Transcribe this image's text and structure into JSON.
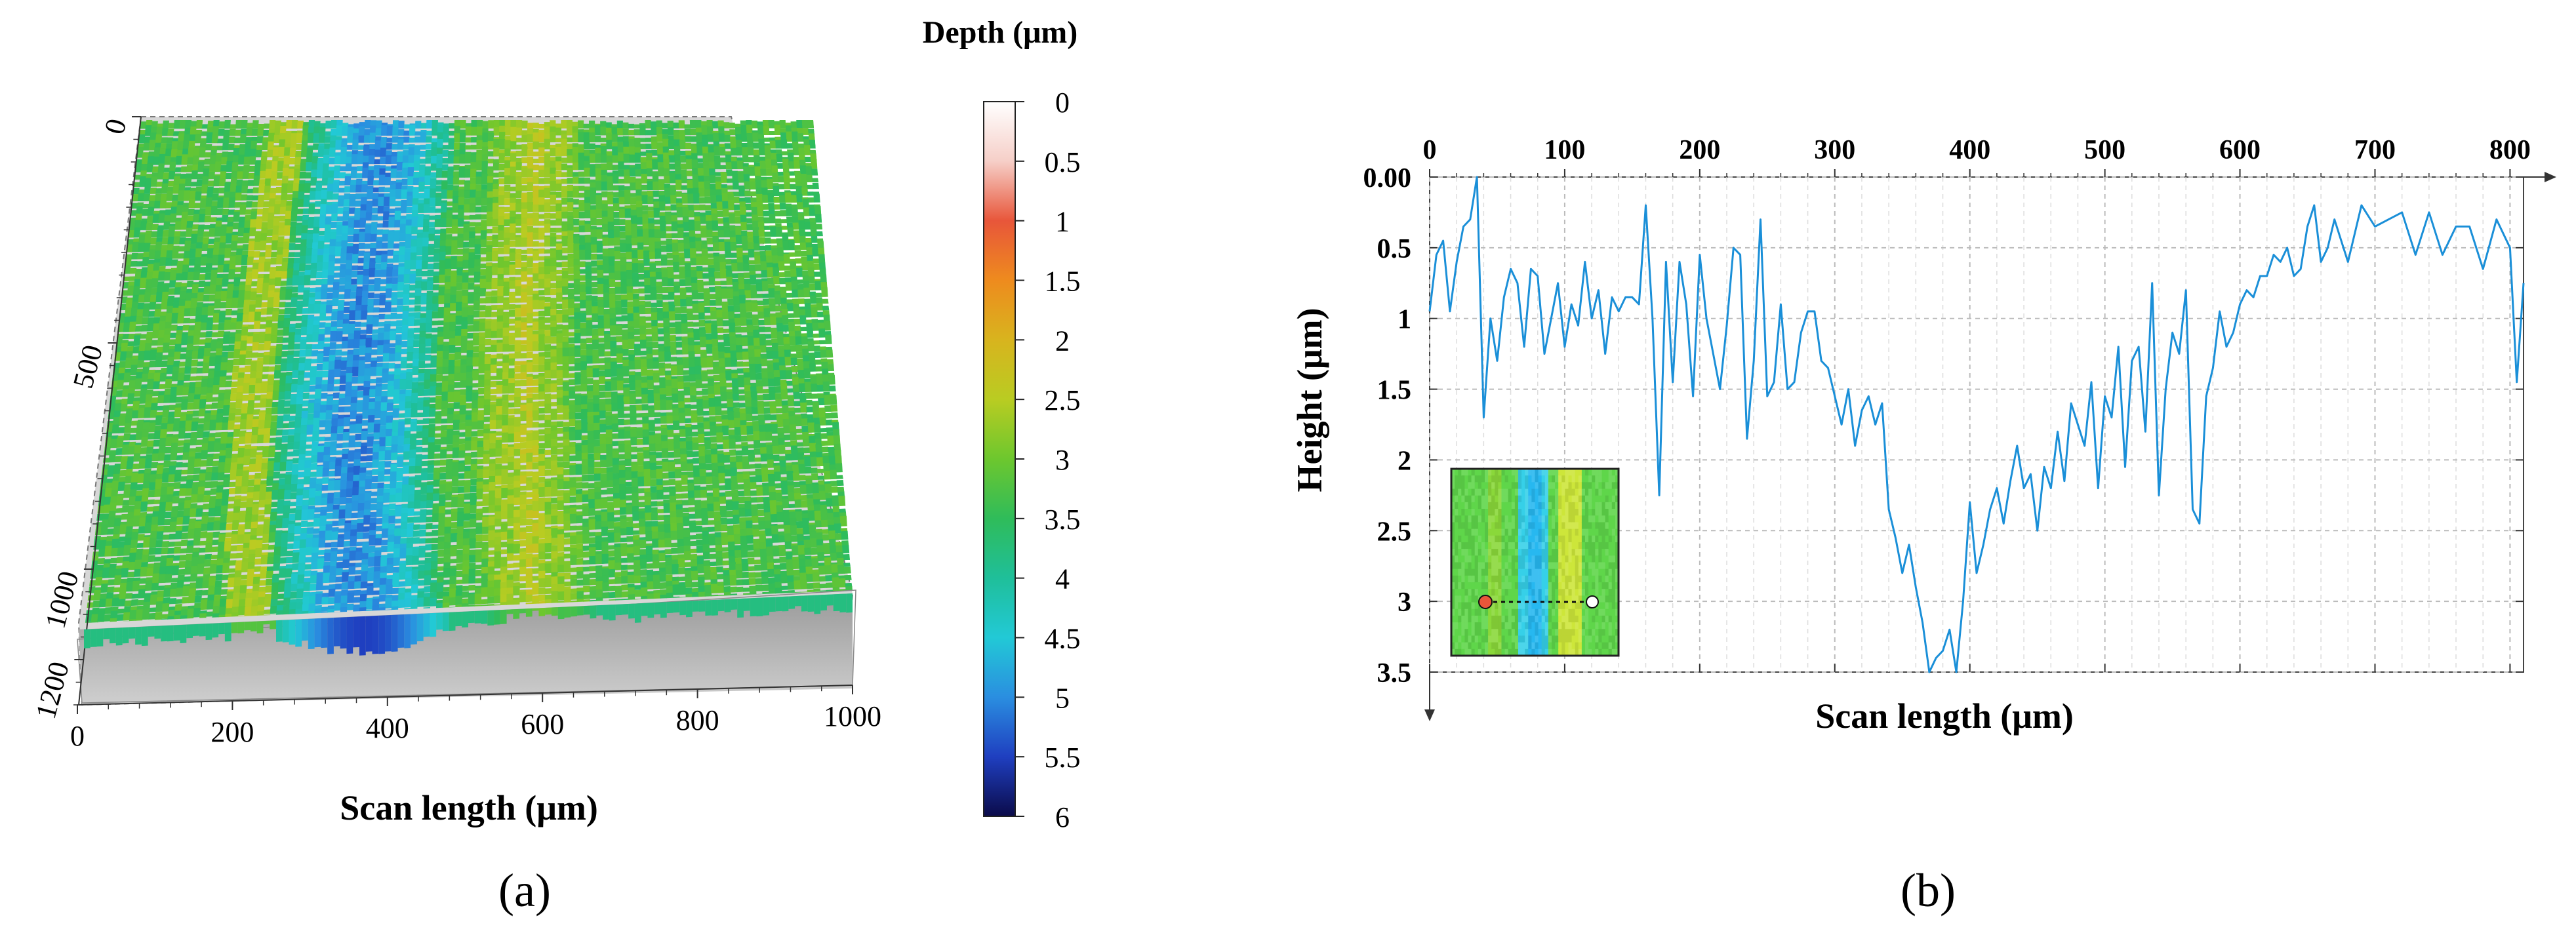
{
  "panel_a": {
    "label": "(a)",
    "x_axis_label": "Scan length (μm)",
    "x_ticks": [
      "0",
      "200",
      "400",
      "600",
      "800",
      "1000"
    ],
    "y_ticks": [
      "0",
      "500",
      "1000",
      "1200"
    ],
    "colorbar_title": "Depth (μm)",
    "colorbar_ticks": [
      "0",
      "0.5",
      "1",
      "1.5",
      "2",
      "2.5",
      "3",
      "3.5",
      "4",
      "4.5",
      "5",
      "5.5",
      "6"
    ],
    "colorbar_colors": [
      "#ffffff",
      "#f6cfc8",
      "#e8563a",
      "#ee8b1e",
      "#d8b41e",
      "#b9cc22",
      "#6dc72e",
      "#2fbc5a",
      "#1fbf9a",
      "#22c9d6",
      "#2a8ee0",
      "#1f3fc0",
      "#0b0b4a"
    ]
  },
  "panel_b": {
    "label": "(b)",
    "x_axis_label": "Scan length (μm)",
    "y_axis_label": "Height (μm)",
    "line_color": "#1a8fd8"
  },
  "chart_data": [
    {
      "type": "heatmap",
      "title": "",
      "xlabel": "Scan length (μm)",
      "ylabel": "",
      "xlim": [
        0,
        1000
      ],
      "ylim": [
        0,
        1200
      ],
      "colorbar": {
        "label": "Depth (μm)",
        "range": [
          0,
          6
        ],
        "ticks": [
          0,
          0.5,
          1,
          1.5,
          2,
          2.5,
          3,
          3.5,
          4,
          4.5,
          5,
          5.5,
          6
        ]
      },
      "features": [
        {
          "name": "deep groove",
          "x_range": [
            250,
            470
          ],
          "depth": 5.0
        },
        {
          "name": "raised ridge",
          "x_range": [
            520,
            660
          ],
          "depth": 2.5
        },
        {
          "name": "surface",
          "depth": 3.3
        }
      ]
    },
    {
      "type": "line",
      "title": "",
      "xlabel": "Scan length (μm)",
      "ylabel": "Height (μm)",
      "xlim": [
        0,
        810
      ],
      "ylim": [
        3.5,
        0
      ],
      "x_ticks": [
        0,
        100,
        200,
        300,
        400,
        500,
        600,
        700,
        800
      ],
      "y_ticks": [
        0.0,
        0.5,
        1,
        1.5,
        2,
        2.5,
        3,
        3.5
      ],
      "x_tick_labels": [
        "0",
        "100",
        "200",
        "300",
        "400",
        "500",
        "600",
        "700",
        "800"
      ],
      "y_tick_labels": [
        "0.00",
        "0.5",
        "1",
        "1.5",
        "2",
        "2.5",
        "3",
        "3.5"
      ],
      "series": [
        {
          "name": "height profile",
          "x": [
            0,
            5,
            10,
            15,
            20,
            25,
            30,
            35,
            40,
            45,
            50,
            55,
            60,
            65,
            70,
            75,
            80,
            85,
            90,
            95,
            100,
            105,
            110,
            115,
            120,
            125,
            130,
            135,
            140,
            145,
            150,
            155,
            160,
            165,
            170,
            175,
            180,
            185,
            190,
            195,
            200,
            205,
            210,
            215,
            220,
            225,
            230,
            235,
            240,
            245,
            250,
            255,
            260,
            265,
            270,
            275,
            280,
            285,
            290,
            295,
            300,
            305,
            310,
            315,
            320,
            325,
            330,
            335,
            340,
            345,
            350,
            355,
            360,
            365,
            370,
            375,
            380,
            385,
            390,
            395,
            400,
            405,
            410,
            415,
            420,
            425,
            430,
            435,
            440,
            445,
            450,
            455,
            460,
            465,
            470,
            475,
            480,
            485,
            490,
            495,
            500,
            505,
            510,
            515,
            520,
            525,
            530,
            535,
            540,
            545,
            550,
            555,
            560,
            565,
            570,
            575,
            580,
            585,
            590,
            595,
            600,
            605,
            610,
            615,
            620,
            625,
            630,
            635,
            640,
            645,
            650,
            655,
            660,
            665,
            670,
            675,
            680,
            690,
            700,
            710,
            720,
            730,
            740,
            750,
            760,
            770,
            780,
            790,
            800,
            805,
            810
          ],
          "values": [
            0.95,
            0.55,
            0.45,
            0.95,
            0.6,
            0.35,
            0.3,
            0.0,
            1.7,
            1.0,
            1.3,
            0.85,
            0.65,
            0.75,
            1.2,
            0.65,
            0.7,
            1.25,
            1.0,
            0.75,
            1.2,
            0.9,
            1.05,
            0.6,
            1.0,
            0.8,
            1.25,
            0.85,
            0.95,
            0.85,
            0.85,
            0.9,
            0.2,
            1.0,
            2.25,
            0.6,
            1.45,
            0.6,
            0.9,
            1.55,
            0.55,
            1.0,
            1.25,
            1.5,
            1.05,
            0.5,
            0.55,
            1.85,
            1.3,
            0.3,
            1.55,
            1.45,
            0.9,
            1.5,
            1.45,
            1.1,
            0.95,
            0.95,
            1.3,
            1.35,
            1.55,
            1.75,
            1.5,
            1.9,
            1.65,
            1.55,
            1.75,
            1.6,
            2.35,
            2.55,
            2.8,
            2.6,
            2.9,
            3.15,
            3.5,
            3.4,
            3.35,
            3.2,
            3.5,
            3.0,
            2.3,
            2.8,
            2.6,
            2.35,
            2.2,
            2.45,
            2.15,
            1.9,
            2.2,
            2.1,
            2.5,
            2.05,
            2.2,
            1.8,
            2.15,
            1.6,
            1.75,
            1.9,
            1.45,
            2.2,
            1.55,
            1.7,
            1.2,
            2.05,
            1.3,
            1.2,
            1.8,
            0.75,
            2.25,
            1.5,
            1.1,
            1.25,
            0.8,
            2.35,
            2.45,
            1.55,
            1.35,
            0.95,
            1.2,
            1.1,
            0.9,
            0.8,
            0.85,
            0.7,
            0.7,
            0.55,
            0.6,
            0.5,
            0.7,
            0.65,
            0.35,
            0.2,
            0.6,
            0.5,
            0.3,
            0.45,
            0.6,
            0.2,
            0.35,
            0.3,
            0.25,
            0.55,
            0.25,
            0.55,
            0.35,
            0.35,
            0.65,
            0.3,
            0.5,
            1.45,
            0.75
          ]
        }
      ],
      "inset": {
        "description_colors": [
          "#4fd24a",
          "#2ec6ff",
          "#d6e83a"
        ],
        "marker_start_color": "#e8563a",
        "marker_end_color": "#ffffff"
      }
    }
  ]
}
